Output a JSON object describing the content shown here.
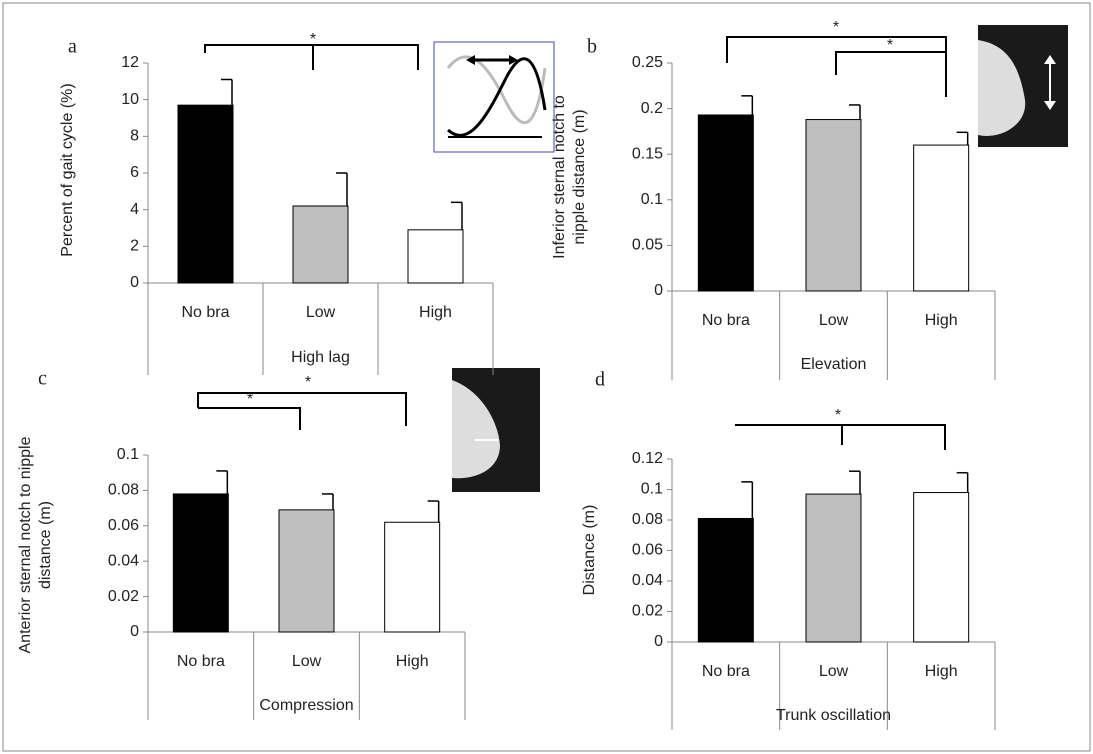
{
  "chart_data": [
    {
      "type": "bar",
      "panel": "a",
      "ylabel": [
        "Percent of gait cycle (%)"
      ],
      "xlabel": "High lag",
      "categories": [
        "No bra",
        "Low",
        "High"
      ],
      "values": [
        9.7,
        4.2,
        2.9
      ],
      "errors": [
        1.4,
        1.8,
        1.5
      ],
      "colors": [
        "#000000",
        "#bfbfbf",
        "#ffffff"
      ],
      "ylim": [
        0,
        12
      ],
      "yticks": [
        0,
        2,
        4,
        6,
        8,
        10,
        12
      ],
      "annotations": [
        "*"
      ]
    },
    {
      "type": "bar",
      "panel": "b",
      "ylabel": [
        "Inferior sternal notch to",
        "nipple distance (m)"
      ],
      "xlabel": "Elevation",
      "categories": [
        "No bra",
        "Low",
        "High"
      ],
      "values": [
        0.193,
        0.188,
        0.16
      ],
      "errors": [
        0.021,
        0.016,
        0.014
      ],
      "colors": [
        "#000000",
        "#bfbfbf",
        "#ffffff"
      ],
      "ylim": [
        0,
        0.25
      ],
      "yticks": [
        0,
        0.05,
        0.1,
        0.15,
        0.2,
        0.25
      ],
      "annotations": [
        "*",
        "*"
      ]
    },
    {
      "type": "bar",
      "panel": "c",
      "ylabel": [
        "Anterior sternal notch to nipple",
        "distance (m)"
      ],
      "xlabel": "Compression",
      "categories": [
        "No bra",
        "Low",
        "High"
      ],
      "values": [
        0.078,
        0.069,
        0.062
      ],
      "errors": [
        0.013,
        0.009,
        0.012
      ],
      "colors": [
        "#000000",
        "#bfbfbf",
        "#ffffff"
      ],
      "ylim": [
        0,
        0.1
      ],
      "yticks": [
        0,
        0.02,
        0.04,
        0.06,
        0.08,
        0.1
      ],
      "annotations": [
        "*",
        "*"
      ]
    },
    {
      "type": "bar",
      "panel": "d",
      "ylabel": [
        "Distance (m)"
      ],
      "xlabel": "Trunk oscillation",
      "categories": [
        "No bra",
        "Low",
        "High"
      ],
      "values": [
        0.081,
        0.097,
        0.098
      ],
      "errors": [
        0.024,
        0.015,
        0.013
      ],
      "colors": [
        "#000000",
        "#bfbfbf",
        "#ffffff"
      ],
      "ylim": [
        0,
        0.12
      ],
      "yticks": [
        0,
        0.02,
        0.04,
        0.06,
        0.08,
        0.1,
        0.12
      ],
      "annotations": [
        "*"
      ]
    }
  ]
}
